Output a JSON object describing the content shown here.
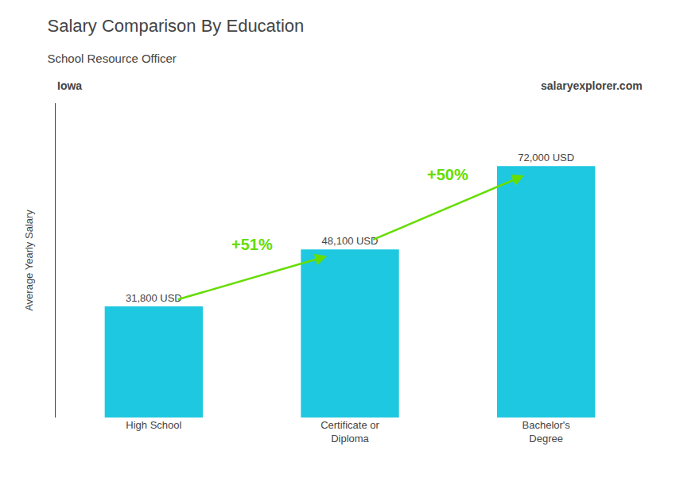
{
  "chart_data": {
    "type": "bar",
    "title": "Salary Comparison By Education",
    "subtitle": "School Resource Officer",
    "ylabel": "Average Yearly Salary",
    "categories": [
      "High School",
      "Certificate or\nDiploma",
      "Bachelor's\nDegree"
    ],
    "values": [
      31800,
      48100,
      72000
    ],
    "value_labels": [
      "31,800 USD",
      "48,100 USD",
      "72,000 USD"
    ],
    "color": "#1ec8e0",
    "ylim": [
      0,
      90000
    ],
    "grid": false,
    "data_labels": true,
    "tick_labels": "x",
    "annotations": [
      {
        "text": "Iowa"
      },
      {
        "text": "salaryexplorer.com"
      },
      {
        "text": "+51%",
        "from": "High School",
        "to": "Certificate or\nDiploma",
        "color": "#66dd00"
      },
      {
        "text": "+50%",
        "from": "Certificate or\nDiploma",
        "to": "Bachelor's\nDegree",
        "color": "#66dd00"
      }
    ]
  }
}
